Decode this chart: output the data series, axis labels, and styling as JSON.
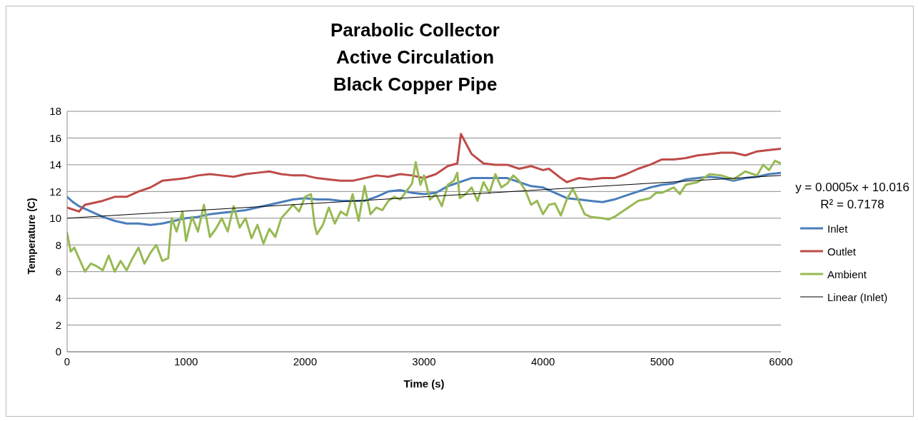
{
  "chart_data": {
    "type": "line",
    "title": "Parabolic Collector\nActive Circulation\nBlack Copper Pipe",
    "xlabel": "Time (s)",
    "ylabel": "Temperature (C)",
    "xlim": [
      0,
      6000
    ],
    "xticks": [
      0,
      1000,
      2000,
      3000,
      4000,
      5000,
      6000
    ],
    "ylim": [
      0,
      18
    ],
    "yticks": [
      0,
      2,
      4,
      6,
      8,
      10,
      12,
      14,
      16,
      18
    ],
    "grid": "y",
    "legend": "right",
    "marker": "none",
    "line_style": "solid",
    "annotations": [
      "y = 0.0005x + 10.016",
      "R² = 0.7178"
    ],
    "series": [
      {
        "name": "Inlet",
        "color": "#4a7ebb",
        "x": [
          0,
          50,
          100,
          200,
          300,
          400,
          500,
          600,
          700,
          800,
          900,
          1000,
          1100,
          1200,
          1300,
          1400,
          1500,
          1600,
          1700,
          1800,
          1900,
          2000,
          2100,
          2200,
          2300,
          2400,
          2500,
          2600,
          2700,
          2800,
          2900,
          3000,
          3100,
          3200,
          3300,
          3400,
          3500,
          3600,
          3700,
          3800,
          3900,
          4000,
          4100,
          4200,
          4300,
          4400,
          4500,
          4600,
          4700,
          4800,
          4900,
          5000,
          5100,
          5200,
          5300,
          5400,
          5500,
          5600,
          5700,
          5800,
          5900,
          6000
        ],
        "values": [
          11.6,
          11.2,
          10.9,
          10.5,
          10.1,
          9.8,
          9.6,
          9.6,
          9.5,
          9.6,
          9.8,
          10.0,
          10.1,
          10.3,
          10.4,
          10.5,
          10.6,
          10.8,
          11.0,
          11.2,
          11.4,
          11.5,
          11.4,
          11.4,
          11.3,
          11.3,
          11.3,
          11.6,
          12.0,
          12.1,
          11.9,
          11.8,
          11.9,
          12.4,
          12.7,
          13.0,
          13.0,
          13.0,
          13.0,
          12.7,
          12.4,
          12.3,
          11.9,
          11.5,
          11.4,
          11.3,
          11.2,
          11.4,
          11.7,
          12.0,
          12.3,
          12.5,
          12.6,
          12.9,
          13.0,
          13.1,
          13.0,
          12.8,
          13.0,
          13.1,
          13.3,
          13.4
        ]
      },
      {
        "name": "Outlet",
        "color": "#be4b48",
        "x": [
          0,
          100,
          150,
          300,
          400,
          500,
          600,
          700,
          800,
          900,
          1000,
          1100,
          1200,
          1300,
          1400,
          1500,
          1600,
          1700,
          1800,
          1900,
          2000,
          2100,
          2200,
          2300,
          2400,
          2500,
          2600,
          2700,
          2800,
          2900,
          3000,
          3100,
          3200,
          3280,
          3310,
          3400,
          3500,
          3600,
          3700,
          3800,
          3900,
          4000,
          4050,
          4150,
          4200,
          4300,
          4400,
          4500,
          4600,
          4700,
          4800,
          4900,
          5000,
          5100,
          5200,
          5300,
          5400,
          5500,
          5600,
          5700,
          5800,
          5900,
          6000
        ],
        "values": [
          10.8,
          10.5,
          11.0,
          11.3,
          11.6,
          11.6,
          12.0,
          12.3,
          12.8,
          12.9,
          13.0,
          13.2,
          13.3,
          13.2,
          13.1,
          13.3,
          13.4,
          13.5,
          13.3,
          13.2,
          13.2,
          13.0,
          12.9,
          12.8,
          12.8,
          13.0,
          13.2,
          13.1,
          13.3,
          13.2,
          13.0,
          13.3,
          13.9,
          14.1,
          16.3,
          14.8,
          14.1,
          14.0,
          14.0,
          13.7,
          13.9,
          13.6,
          13.7,
          13.0,
          12.7,
          13.0,
          12.9,
          13.0,
          13.0,
          13.3,
          13.7,
          14.0,
          14.4,
          14.4,
          14.5,
          14.7,
          14.8,
          14.9,
          14.9,
          14.7,
          15.0,
          15.1,
          15.2
        ]
      },
      {
        "name": "Ambient",
        "color": "#98b954",
        "x": [
          0,
          30,
          60,
          100,
          150,
          200,
          250,
          300,
          350,
          400,
          450,
          500,
          550,
          600,
          650,
          700,
          750,
          800,
          850,
          880,
          920,
          970,
          1000,
          1050,
          1100,
          1150,
          1200,
          1250,
          1300,
          1350,
          1400,
          1450,
          1500,
          1550,
          1600,
          1650,
          1700,
          1750,
          1800,
          1850,
          1900,
          1950,
          2000,
          2050,
          2080,
          2100,
          2150,
          2200,
          2250,
          2300,
          2350,
          2400,
          2450,
          2500,
          2550,
          2600,
          2650,
          2700,
          2750,
          2800,
          2850,
          2900,
          2930,
          2970,
          3000,
          3050,
          3100,
          3150,
          3200,
          3250,
          3280,
          3300,
          3350,
          3400,
          3450,
          3500,
          3550,
          3600,
          3650,
          3700,
          3750,
          3800,
          3850,
          3900,
          3950,
          4000,
          4050,
          4100,
          4150,
          4200,
          4250,
          4300,
          4350,
          4400,
          4500,
          4550,
          4600,
          4700,
          4800,
          4900,
          4950,
          5000,
          5100,
          5150,
          5200,
          5300,
          5400,
          5500,
          5600,
          5700,
          5800,
          5850,
          5900,
          5950,
          6000
        ],
        "values": [
          8.9,
          7.5,
          7.8,
          7.0,
          6.0,
          6.6,
          6.4,
          6.1,
          7.2,
          6.0,
          6.8,
          6.1,
          7.0,
          7.8,
          6.6,
          7.4,
          8.0,
          6.8,
          7.0,
          10.0,
          9.0,
          10.5,
          8.3,
          10.1,
          9.0,
          11.0,
          8.6,
          9.2,
          10.0,
          9.0,
          10.9,
          9.3,
          10.0,
          8.5,
          9.5,
          8.1,
          9.2,
          8.6,
          10.0,
          10.5,
          11.0,
          10.5,
          11.6,
          11.8,
          9.5,
          8.8,
          9.5,
          10.8,
          9.6,
          10.5,
          10.2,
          11.8,
          9.8,
          12.4,
          10.3,
          10.8,
          10.6,
          11.3,
          11.6,
          11.4,
          12.0,
          12.6,
          14.2,
          12.5,
          13.2,
          11.4,
          11.8,
          10.9,
          12.5,
          12.8,
          13.4,
          11.5,
          11.8,
          12.3,
          11.3,
          12.7,
          11.9,
          13.3,
          12.3,
          12.6,
          13.2,
          12.8,
          12.1,
          11.0,
          11.3,
          10.3,
          11.0,
          11.1,
          10.2,
          11.4,
          12.2,
          11.3,
          10.3,
          10.1,
          10.0,
          9.9,
          10.1,
          10.7,
          11.3,
          11.5,
          11.9,
          11.9,
          12.3,
          11.8,
          12.5,
          12.7,
          13.3,
          13.2,
          12.9,
          13.5,
          13.2,
          14.0,
          13.6,
          14.3,
          14.1
        ]
      },
      {
        "name": "Linear (Inlet)",
        "type": "line",
        "color": "#000000",
        "x": [
          0,
          6000
        ],
        "values": [
          10.0,
          13.2
        ]
      }
    ]
  }
}
